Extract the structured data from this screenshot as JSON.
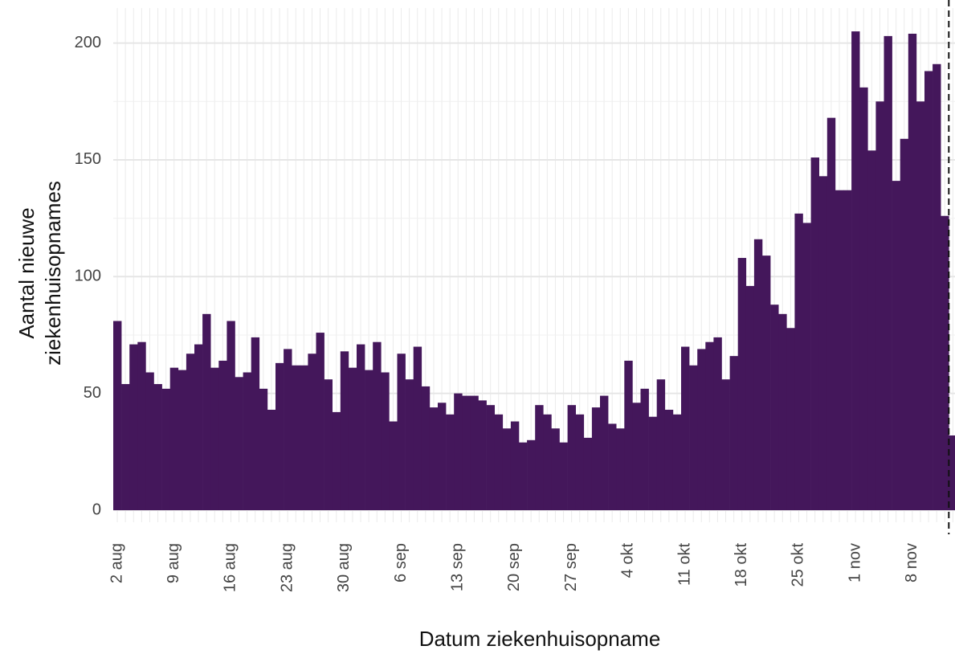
{
  "chart_data": {
    "type": "bar",
    "x_label": "Datum ziekenhuisopname",
    "y_label": [
      "Aantal nieuwe",
      "ziekenhuisopnames"
    ],
    "categories": [
      "2 aug",
      null,
      null,
      null,
      null,
      null,
      null,
      "9 aug",
      null,
      null,
      null,
      null,
      null,
      null,
      "16 aug",
      null,
      null,
      null,
      null,
      null,
      null,
      "23 aug",
      null,
      null,
      null,
      null,
      null,
      null,
      "30 aug",
      null,
      null,
      null,
      null,
      null,
      null,
      "6 sep",
      null,
      null,
      null,
      null,
      null,
      null,
      "13 sep",
      null,
      null,
      null,
      null,
      null,
      null,
      "20 sep",
      null,
      null,
      null,
      null,
      null,
      null,
      "27 sep",
      null,
      null,
      null,
      null,
      null,
      null,
      "4 okt",
      null,
      null,
      null,
      null,
      null,
      null,
      "11 okt",
      null,
      null,
      null,
      null,
      null,
      null,
      "18 okt",
      null,
      null,
      null,
      null,
      null,
      null,
      "25 okt",
      null,
      null,
      null,
      null,
      null,
      null,
      "1 nov",
      null,
      null,
      null,
      null,
      null,
      null,
      "8 nov",
      null,
      null,
      null,
      null,
      null
    ],
    "values": [
      81,
      54,
      71,
      72,
      59,
      54,
      52,
      61,
      60,
      67,
      71,
      84,
      61,
      64,
      81,
      57,
      59,
      74,
      52,
      43,
      63,
      69,
      62,
      62,
      67,
      76,
      56,
      42,
      68,
      61,
      71,
      60,
      72,
      59,
      38,
      67,
      56,
      70,
      53,
      44,
      46,
      41,
      50,
      49,
      49,
      47,
      45,
      41,
      35,
      38,
      29,
      30,
      45,
      41,
      35,
      29,
      45,
      41,
      31,
      44,
      49,
      37,
      35,
      64,
      46,
      52,
      40,
      56,
      43,
      41,
      70,
      62,
      69,
      72,
      74,
      56,
      66,
      108,
      96,
      116,
      109,
      88,
      84,
      78,
      127,
      123,
      151,
      143,
      168,
      137,
      137,
      205,
      181,
      154,
      175,
      203,
      141,
      159,
      204,
      175,
      188,
      191,
      126,
      32
    ],
    "color": "#44175b",
    "ylim": [
      0,
      215
    ],
    "yticks": [
      0,
      50,
      100,
      150,
      200
    ],
    "grid": true
  }
}
